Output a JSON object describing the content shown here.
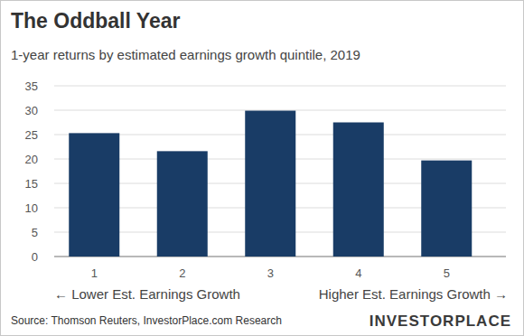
{
  "chart_data": {
    "type": "bar",
    "title": "The Oddball Year",
    "subtitle": "1-year returns by estimated earnings growth quintile, 2019",
    "categories": [
      "1",
      "2",
      "3",
      "4",
      "5"
    ],
    "values": [
      25.3,
      21.6,
      29.9,
      27.5,
      19.7
    ],
    "color": "#193c66",
    "ylim": [
      0,
      35
    ],
    "yticks": [
      0,
      5,
      10,
      15,
      20,
      25,
      30,
      35
    ],
    "grid": true,
    "annotations": [
      "← Lower Est. Earnings Growth",
      "Higher Est. Earnings Growth →"
    ],
    "source": "Source: Thomson Reuters, InvestorPlace.com Research",
    "logo": "INVESTORPLACE"
  }
}
